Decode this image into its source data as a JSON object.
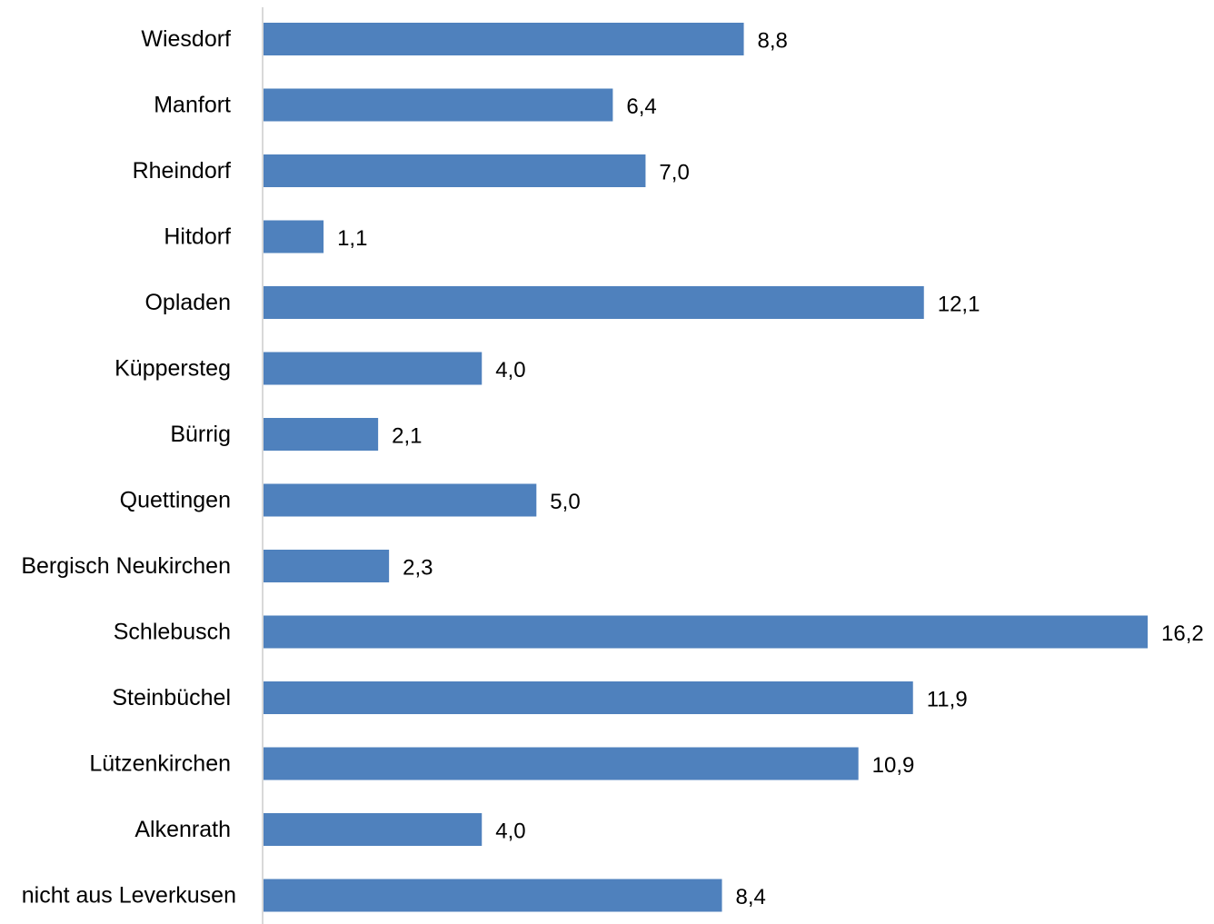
{
  "chart_data": {
    "type": "bar",
    "orientation": "horizontal",
    "categories": [
      "Wiesdorf",
      "Manfort",
      "Rheindorf",
      "Hitdorf",
      "Opladen",
      "Küppersteg",
      "Bürrig",
      "Quettingen",
      "Bergisch Neukirchen",
      "Schlebusch",
      "Steinbüchel",
      "Lützenkirchen",
      "Alkenrath",
      "nicht aus Leverkusen"
    ],
    "values": [
      8.8,
      6.4,
      7.0,
      1.1,
      12.1,
      4.0,
      2.1,
      5.0,
      2.3,
      16.2,
      11.9,
      10.9,
      4.0,
      8.4
    ],
    "value_labels": [
      "8,8",
      "6,4",
      "7,0",
      "1,1",
      "12,1",
      "4,0",
      "2,1",
      "5,0",
      "2,3",
      "16,2",
      "11,9",
      "10,9",
      "4,0",
      "8,4"
    ],
    "title": "",
    "xlabel": "",
    "ylabel": "",
    "xlim": [
      0,
      16.2
    ],
    "grid": false,
    "legend": "none",
    "bar_color": "#4f81bd",
    "axis_color": "#d9d9d9"
  }
}
